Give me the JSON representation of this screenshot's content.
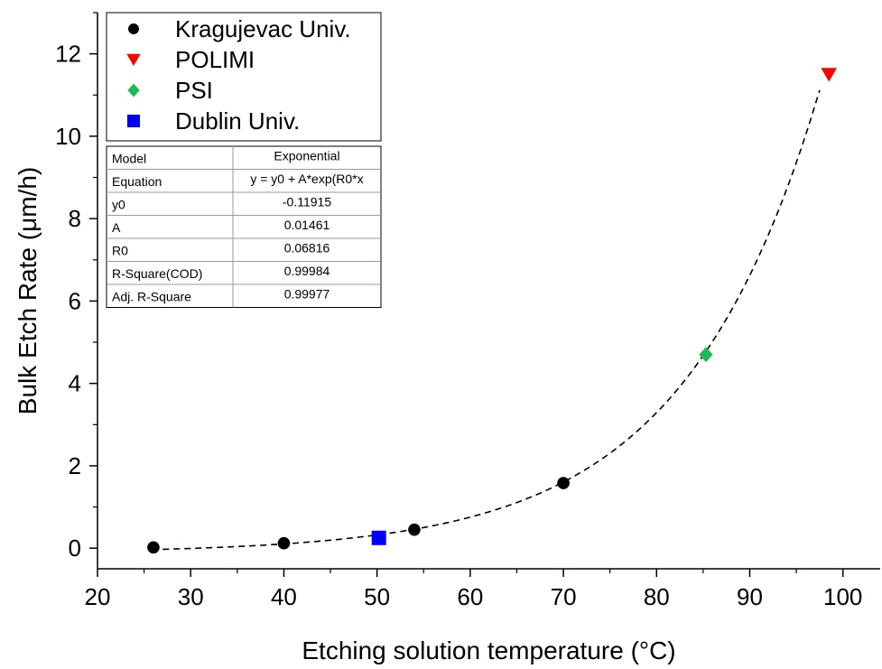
{
  "chart_data": {
    "type": "scatter",
    "xlabel": "Etching solution temperature (°C)",
    "ylabel": "Bulk Etch Rate (μm/h)",
    "xlim": [
      20,
      104
    ],
    "ylim": [
      -0.5,
      13
    ],
    "xticks": [
      20,
      30,
      40,
      50,
      60,
      70,
      80,
      90,
      100
    ],
    "yticks": [
      0,
      2,
      4,
      6,
      8,
      10,
      12
    ],
    "series": [
      {
        "name": "Kragujevac Univ.",
        "marker": "circle",
        "color": "#000000",
        "points": [
          [
            26,
            0.02
          ],
          [
            40,
            0.12
          ],
          [
            54,
            0.45
          ],
          [
            70,
            1.58
          ]
        ]
      },
      {
        "name": "POLIMI",
        "marker": "triangle-down",
        "color": "#ff0000",
        "points": [
          [
            98.5,
            11.5
          ]
        ]
      },
      {
        "name": "PSI",
        "marker": "diamond",
        "color": "#1db954",
        "points": [
          [
            85.3,
            4.7
          ]
        ]
      },
      {
        "name": "Dublin Univ.",
        "marker": "square",
        "color": "#0000ff",
        "points": [
          [
            50.2,
            0.25
          ]
        ]
      }
    ],
    "fit": {
      "model": "Exponential",
      "x_range": [
        27,
        97.5
      ],
      "y0": -0.11915,
      "A": 0.01461,
      "R0": 0.06816
    },
    "legend_position": "top-left",
    "fit_table": {
      "rows": [
        [
          "Model",
          "Exponential"
        ],
        [
          "Equation",
          "y = y0 + A*exp(R0*x"
        ],
        [
          "y0",
          "-0.11915"
        ],
        [
          "A",
          "0.01461"
        ],
        [
          "R0",
          "0.06816"
        ],
        [
          "R-Square(COD)",
          "0.99984"
        ],
        [
          "Adj. R-Square",
          "0.99977"
        ]
      ]
    }
  }
}
